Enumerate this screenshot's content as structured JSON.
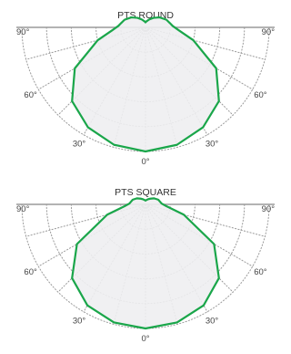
{
  "chart_data": [
    {
      "type": "polar",
      "title": "PTS ROUND",
      "angle_labels": [
        "90°",
        "60°",
        "30°",
        "0°",
        "30°",
        "60°",
        "90°"
      ],
      "angles": [
        -90,
        -60,
        -30,
        0,
        30,
        60,
        90
      ],
      "rlim": [
        0,
        1
      ],
      "grid": true,
      "series": [
        {
          "color": "#1aa64a",
          "points": [
            {
              "angle": -180,
              "r": 0.04
            },
            {
              "angle": -170,
              "r": 0.05
            },
            {
              "angle": -155,
              "r": 0.07
            },
            {
              "angle": -140,
              "r": 0.1
            },
            {
              "angle": -125,
              "r": 0.14
            },
            {
              "angle": -110,
              "r": 0.18
            },
            {
              "angle": -100,
              "r": 0.2
            },
            {
              "angle": -93,
              "r": 0.22
            },
            {
              "angle": -85,
              "r": 0.27
            },
            {
              "angle": -75,
              "r": 0.4
            },
            {
              "angle": -60,
              "r": 0.66
            },
            {
              "angle": -45,
              "r": 0.84
            },
            {
              "angle": -30,
              "r": 0.93
            },
            {
              "angle": -15,
              "r": 0.98
            },
            {
              "angle": 0,
              "r": 1.0
            },
            {
              "angle": 15,
              "r": 0.98
            },
            {
              "angle": 30,
              "r": 0.93
            },
            {
              "angle": 45,
              "r": 0.84
            },
            {
              "angle": 60,
              "r": 0.66
            },
            {
              "angle": 75,
              "r": 0.4
            },
            {
              "angle": 85,
              "r": 0.27
            },
            {
              "angle": 93,
              "r": 0.22
            },
            {
              "angle": 100,
              "r": 0.2
            },
            {
              "angle": 110,
              "r": 0.18
            },
            {
              "angle": 125,
              "r": 0.14
            },
            {
              "angle": 140,
              "r": 0.1
            },
            {
              "angle": 155,
              "r": 0.07
            },
            {
              "angle": 170,
              "r": 0.05
            },
            {
              "angle": 180,
              "r": 0.04
            }
          ]
        }
      ]
    },
    {
      "type": "polar",
      "title": "PTS SQUARE",
      "angle_labels": [
        "90°",
        "60°",
        "30°",
        "0°",
        "30°",
        "60°",
        "90°"
      ],
      "angles": [
        -90,
        -60,
        -30,
        0,
        30,
        60,
        90
      ],
      "rlim": [
        0,
        1
      ],
      "grid": true,
      "series": [
        {
          "color": "#1aa64a",
          "points": [
            {
              "angle": -180,
              "r": 0.03
            },
            {
              "angle": -170,
              "r": 0.035
            },
            {
              "angle": -155,
              "r": 0.045
            },
            {
              "angle": -140,
              "r": 0.06
            },
            {
              "angle": -125,
              "r": 0.085
            },
            {
              "angle": -110,
              "r": 0.11
            },
            {
              "angle": -100,
              "r": 0.12
            },
            {
              "angle": -93,
              "r": 0.13
            },
            {
              "angle": -85,
              "r": 0.17
            },
            {
              "angle": -75,
              "r": 0.32
            },
            {
              "angle": -60,
              "r": 0.64
            },
            {
              "angle": -45,
              "r": 0.84
            },
            {
              "angle": -30,
              "r": 0.94
            },
            {
              "angle": -15,
              "r": 0.985
            },
            {
              "angle": 0,
              "r": 1.0
            },
            {
              "angle": 15,
              "r": 0.985
            },
            {
              "angle": 30,
              "r": 0.94
            },
            {
              "angle": 45,
              "r": 0.84
            },
            {
              "angle": 60,
              "r": 0.64
            },
            {
              "angle": 75,
              "r": 0.32
            },
            {
              "angle": 85,
              "r": 0.17
            },
            {
              "angle": 93,
              "r": 0.13
            },
            {
              "angle": 100,
              "r": 0.12
            },
            {
              "angle": 110,
              "r": 0.11
            },
            {
              "angle": 125,
              "r": 0.085
            },
            {
              "angle": 140,
              "r": 0.06
            },
            {
              "angle": 155,
              "r": 0.045
            },
            {
              "angle": 170,
              "r": 0.035
            },
            {
              "angle": 180,
              "r": 0.03
            }
          ]
        }
      ]
    }
  ],
  "colors": {
    "grid": "#9a9a9a",
    "baseline": "#9a9a9a",
    "fill": "#eeeef1",
    "trace": "#1aa64a"
  }
}
